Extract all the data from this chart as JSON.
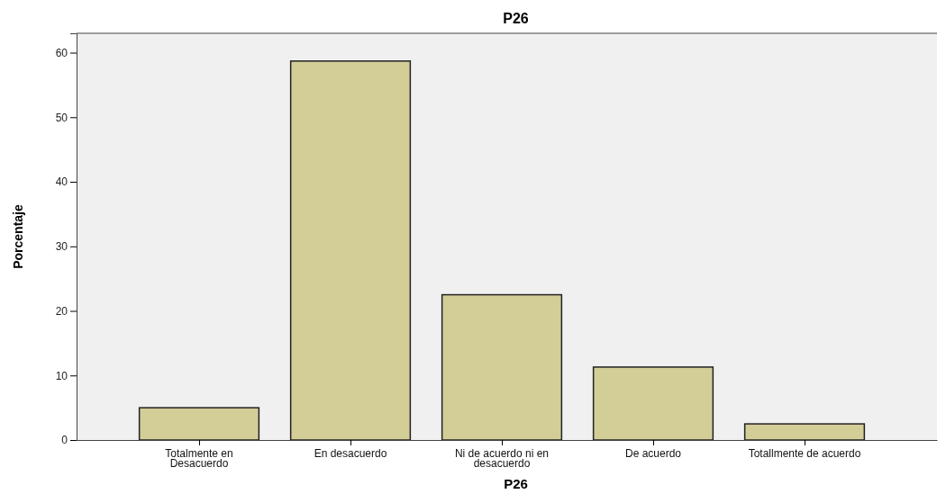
{
  "chart_data": {
    "type": "bar",
    "title": "P26",
    "xlabel": "P26",
    "ylabel": "Porcentaje",
    "categories": [
      "Totalmente en Desacuerdo",
      "En desacuerdo",
      "Ni de acuerdo ni en desacuerdo",
      "De acuerdo",
      "Totallmente de acuerdo"
    ],
    "values": [
      5.0,
      58.7,
      22.5,
      11.3,
      2.5
    ],
    "color": "#d3cd98",
    "ylim": [
      0,
      63
    ],
    "yticks": [
      0,
      10,
      20,
      30,
      40,
      50,
      60
    ],
    "grid": false
  }
}
